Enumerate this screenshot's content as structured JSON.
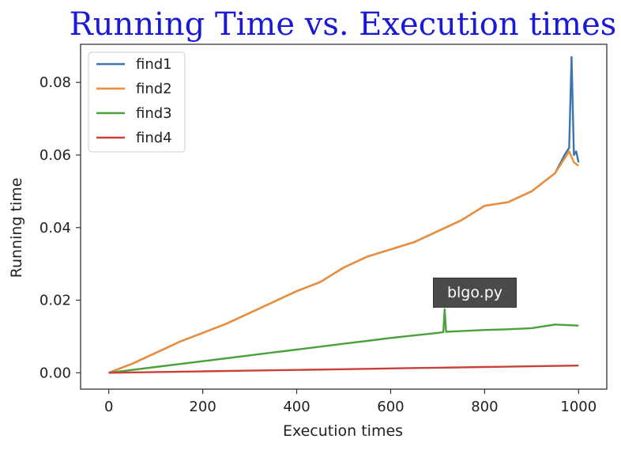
{
  "chart_data": {
    "type": "line",
    "title": "Running Time vs. Execution times",
    "xlabel": "Execution times",
    "ylabel": "Running time",
    "xlim": [
      -60,
      1060
    ],
    "ylim": [
      -0.0045,
      0.0905
    ],
    "x_ticks": [
      0,
      200,
      400,
      600,
      800,
      1000
    ],
    "x_tick_labels": [
      "0",
      "200",
      "400",
      "600",
      "800",
      "1000"
    ],
    "y_ticks": [
      0.0,
      0.02,
      0.04,
      0.06,
      0.08
    ],
    "y_tick_labels": [
      "0.00",
      "0.02",
      "0.04",
      "0.06",
      "0.08"
    ],
    "legend_position": "top-left",
    "grid": false,
    "series": [
      {
        "name": "find1",
        "color": "#3a75b0",
        "x": [
          0,
          50,
          100,
          150,
          200,
          250,
          300,
          350,
          400,
          450,
          500,
          550,
          600,
          650,
          700,
          750,
          800,
          850,
          900,
          950,
          970,
          980,
          985,
          990,
          995,
          1000
        ],
        "y": [
          0.0,
          0.0025,
          0.0055,
          0.0085,
          0.011,
          0.0135,
          0.0165,
          0.0195,
          0.0225,
          0.025,
          0.029,
          0.032,
          0.034,
          0.036,
          0.039,
          0.042,
          0.046,
          0.047,
          0.05,
          0.055,
          0.06,
          0.062,
          0.087,
          0.06,
          0.061,
          0.058
        ]
      },
      {
        "name": "find2",
        "color": "#ef8d36",
        "x": [
          0,
          50,
          100,
          150,
          200,
          250,
          300,
          350,
          400,
          450,
          500,
          550,
          600,
          650,
          700,
          750,
          800,
          850,
          900,
          950,
          970,
          980,
          990,
          1000
        ],
        "y": [
          0.0,
          0.0025,
          0.0055,
          0.0085,
          0.011,
          0.0135,
          0.0165,
          0.0195,
          0.0225,
          0.025,
          0.029,
          0.032,
          0.034,
          0.036,
          0.039,
          0.042,
          0.046,
          0.047,
          0.05,
          0.055,
          0.059,
          0.061,
          0.058,
          0.057
        ]
      },
      {
        "name": "find3",
        "color": "#4aa13a",
        "x": [
          0,
          50,
          100,
          150,
          200,
          250,
          300,
          350,
          400,
          450,
          500,
          550,
          600,
          650,
          700,
          712,
          715,
          718,
          750,
          800,
          850,
          900,
          950,
          1000
        ],
        "y": [
          0.0,
          0.0008,
          0.0016,
          0.0024,
          0.0032,
          0.004,
          0.0048,
          0.0056,
          0.0064,
          0.0072,
          0.008,
          0.0088,
          0.0096,
          0.0103,
          0.011,
          0.0112,
          0.0175,
          0.0113,
          0.0115,
          0.0118,
          0.012,
          0.0123,
          0.0133,
          0.013
        ]
      },
      {
        "name": "find4",
        "color": "#c9423a",
        "x": [
          0,
          100,
          200,
          300,
          400,
          500,
          600,
          700,
          800,
          900,
          1000
        ],
        "y": [
          0.0,
          0.0002,
          0.0004,
          0.0006,
          0.0008,
          0.001,
          0.0012,
          0.0014,
          0.0016,
          0.0018,
          0.002
        ]
      }
    ]
  },
  "tooltip": {
    "text": "blgo.py"
  }
}
